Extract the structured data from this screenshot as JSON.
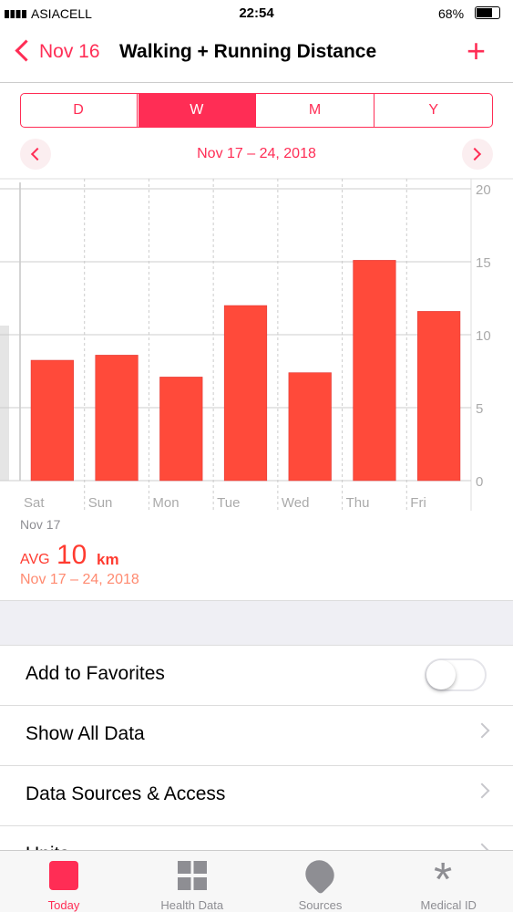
{
  "status": {
    "carrier": "ASIACELL",
    "time": "22:54",
    "battery": "68%"
  },
  "nav": {
    "back": "Nov 16",
    "title": "Walking + Running Distance"
  },
  "segments": [
    "D",
    "W",
    "M",
    "Y"
  ],
  "range": "Nov 17 – 24, 2018",
  "chart_data": {
    "type": "bar",
    "categories": [
      "Sat",
      "Sun",
      "Mon",
      "Tue",
      "Wed",
      "Thu",
      "Fri"
    ],
    "values": [
      8.25,
      8.6,
      7.1,
      12,
      7.4,
      15.1,
      11.6
    ],
    "color": "#ff4a3a",
    "ylim": [
      0,
      20
    ],
    "yticks": [
      0,
      5,
      10,
      15,
      20
    ],
    "grid": true,
    "start_label": "Nov 17"
  },
  "summary": {
    "label": "AVG",
    "value": "10",
    "unit": "km",
    "range": "Nov 17 – 24, 2018"
  },
  "list": [
    "Add to Favorites",
    "Show All Data",
    "Data Sources & Access",
    "Units"
  ],
  "tabs": [
    "Today",
    "Health Data",
    "Sources",
    "Medical ID"
  ]
}
